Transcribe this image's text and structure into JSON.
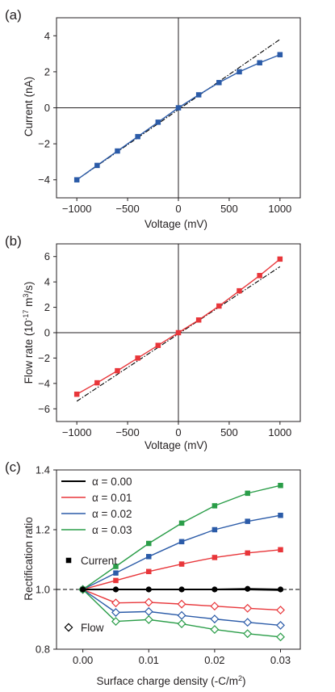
{
  "chart_data": [
    {
      "panel_label": "(a)",
      "type": "line",
      "xlabel": "Voltage (mV)",
      "ylabel": "Current (nA)",
      "xlim": [
        -1200,
        1200
      ],
      "ylim": [
        -5,
        5
      ],
      "xticks": [
        -1000,
        -500,
        0,
        500,
        1000
      ],
      "yticks": [
        -4,
        -2,
        0,
        2,
        4
      ],
      "zero_lines": true,
      "series": [
        {
          "color": "#2b5ba8",
          "marker": "square",
          "x": [
            -1000,
            -800,
            -600,
            -400,
            -200,
            0,
            200,
            400,
            600,
            800,
            1000
          ],
          "y": [
            -4.0,
            -3.2,
            -2.4,
            -1.6,
            -0.8,
            0,
            0.72,
            1.4,
            2.0,
            2.5,
            2.95
          ]
        }
      ],
      "reference_line": {
        "style": "dash-dot",
        "color": "#000000",
        "x": [
          -1000,
          1000
        ],
        "y": [
          -4.0,
          3.8
        ]
      }
    },
    {
      "panel_label": "(b)",
      "type": "line",
      "xlabel": "Voltage (mV)",
      "ylabel": "Flow rate (10",
      "ylabel_sup": "-17",
      "ylabel_tail": " m",
      "ylabel_sup2": "3",
      "ylabel_end": "/s)",
      "xlim": [
        -1200,
        1200
      ],
      "ylim": [
        -7,
        7
      ],
      "xticks": [
        -1000,
        -500,
        0,
        500,
        1000
      ],
      "yticks": [
        -6,
        -4,
        -2,
        0,
        2,
        4,
        6
      ],
      "zero_lines": true,
      "series": [
        {
          "color": "#e8363a",
          "marker": "square",
          "x": [
            -1000,
            -800,
            -600,
            -400,
            -200,
            0,
            200,
            400,
            600,
            800,
            1000
          ],
          "y": [
            -4.85,
            -3.95,
            -3.0,
            -2.0,
            -1.0,
            0,
            1.0,
            2.1,
            3.3,
            4.5,
            5.8
          ]
        }
      ],
      "reference_line": {
        "style": "dash-dot",
        "color": "#000000",
        "x": [
          -1000,
          1000
        ],
        "y": [
          -5.4,
          5.2
        ]
      }
    },
    {
      "panel_label": "(c)",
      "type": "line",
      "xlabel": "Surface charge density (-C/m",
      "xlabel_sup": "2",
      "xlabel_end": ")",
      "ylabel": "Rectification ratio",
      "xlim": [
        -0.004,
        0.033
      ],
      "ylim": [
        0.8,
        1.4
      ],
      "xticks": [
        0.0,
        0.01,
        0.02,
        0.03
      ],
      "xtick_labels": [
        "0.00",
        "0.01",
        "0.02",
        "0.03"
      ],
      "yticks": [
        0.8,
        1.0,
        1.2,
        1.4
      ],
      "ytick_labels": [
        "0.8",
        "1.0",
        "1.2",
        "1.4"
      ],
      "x": [
        0.0,
        0.005,
        0.01,
        0.015,
        0.02,
        0.025,
        0.03
      ],
      "series": [
        {
          "name": "α = 0.00",
          "color": "#000000",
          "current": [
            1.0,
            1.0,
            1.0,
            1.0,
            1.0,
            1.002,
            1.0
          ],
          "flow": [
            1.0,
            1.0,
            1.0,
            1.0,
            1.0,
            1.0,
            0.998
          ]
        },
        {
          "name": "α = 0.01",
          "color": "#e8363a",
          "current": [
            1.0,
            1.03,
            1.06,
            1.085,
            1.107,
            1.122,
            1.133
          ],
          "flow": [
            1.0,
            0.955,
            0.957,
            0.951,
            0.944,
            0.937,
            0.931
          ]
        },
        {
          "name": "α = 0.02",
          "color": "#2b5ba8",
          "current": [
            1.0,
            1.055,
            1.11,
            1.16,
            1.2,
            1.228,
            1.248
          ],
          "flow": [
            1.0,
            0.923,
            0.926,
            0.913,
            0.901,
            0.89,
            0.88
          ]
        },
        {
          "name": "α = 0.03",
          "color": "#2a9d48",
          "current": [
            1.0,
            1.077,
            1.154,
            1.222,
            1.28,
            1.322,
            1.348
          ],
          "flow": [
            1.0,
            0.893,
            0.899,
            0.885,
            0.866,
            0.852,
            0.841
          ]
        }
      ],
      "reference_line": {
        "style": "dashed",
        "color": "#000000",
        "y": 1.0
      },
      "marker_legend": {
        "current_label": "Current",
        "flow_label": "Flow"
      },
      "legend_position": "top-left"
    }
  ]
}
